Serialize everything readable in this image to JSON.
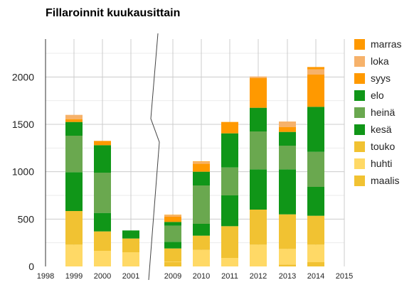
{
  "chart_data": {
    "type": "bar",
    "stacked": true,
    "title": "Fillaroinnit kuukausittain",
    "xlabel": "",
    "ylabel": "",
    "ylim": [
      0,
      2400
    ],
    "y_ticks": [
      "0",
      "500",
      "1000",
      "1500",
      "2000"
    ],
    "x_ticks": [
      "1998",
      "1999",
      "2000",
      "2001",
      "2009",
      "2010",
      "2011",
      "2012",
      "2013",
      "2014",
      "2015"
    ],
    "axis_break": "between 2001 and 2009",
    "grid": true,
    "legend_position": "right",
    "categories": [
      "1999",
      "2000",
      "2001",
      "2009",
      "2010",
      "2011",
      "2012",
      "2013",
      "2014"
    ],
    "series": [
      {
        "name": "maalis",
        "color": "#f1c232",
        "values": [
          0,
          0,
          0,
          45,
          0,
          0,
          0,
          20,
          45
        ]
      },
      {
        "name": "huhti",
        "color": "#ffd966",
        "values": [
          230,
          165,
          150,
          5,
          175,
          90,
          230,
          165,
          185
        ]
      },
      {
        "name": "touko",
        "color": "#f1c232",
        "values": [
          355,
          205,
          145,
          140,
          150,
          335,
          370,
          365,
          305
        ]
      },
      {
        "name": "kesä",
        "color": "#109618",
        "values": [
          410,
          195,
          85,
          70,
          125,
          325,
          425,
          475,
          305
        ]
      },
      {
        "name": "heinä",
        "color": "#6aa84f",
        "values": [
          385,
          425,
          0,
          170,
          405,
          295,
          400,
          250,
          370
        ]
      },
      {
        "name": "elo",
        "color": "#109618",
        "values": [
          145,
          290,
          0,
          40,
          145,
          360,
          250,
          145,
          475
        ]
      },
      {
        "name": "syys",
        "color": "#ff9900",
        "values": [
          30,
          45,
          0,
          55,
          85,
          120,
          315,
          50,
          340
        ]
      },
      {
        "name": "loka",
        "color": "#f6b26b",
        "values": [
          45,
          0,
          0,
          15,
          20,
          0,
          15,
          60,
          55
        ]
      },
      {
        "name": "marras",
        "color": "#ff9900",
        "values": [
          0,
          0,
          0,
          5,
          5,
          0,
          0,
          0,
          25
        ]
      }
    ]
  },
  "legend": {
    "items": [
      {
        "label": "marras",
        "color": "#ff9900"
      },
      {
        "label": "loka",
        "color": "#f6b26b"
      },
      {
        "label": "syys",
        "color": "#ff9900"
      },
      {
        "label": "elo",
        "color": "#109618"
      },
      {
        "label": "heinä",
        "color": "#6aa84f"
      },
      {
        "label": "kesä",
        "color": "#109618"
      },
      {
        "label": "touko",
        "color": "#f1c232"
      },
      {
        "label": "huhti",
        "color": "#ffd966"
      },
      {
        "label": "maalis",
        "color": "#f1c232"
      }
    ]
  }
}
